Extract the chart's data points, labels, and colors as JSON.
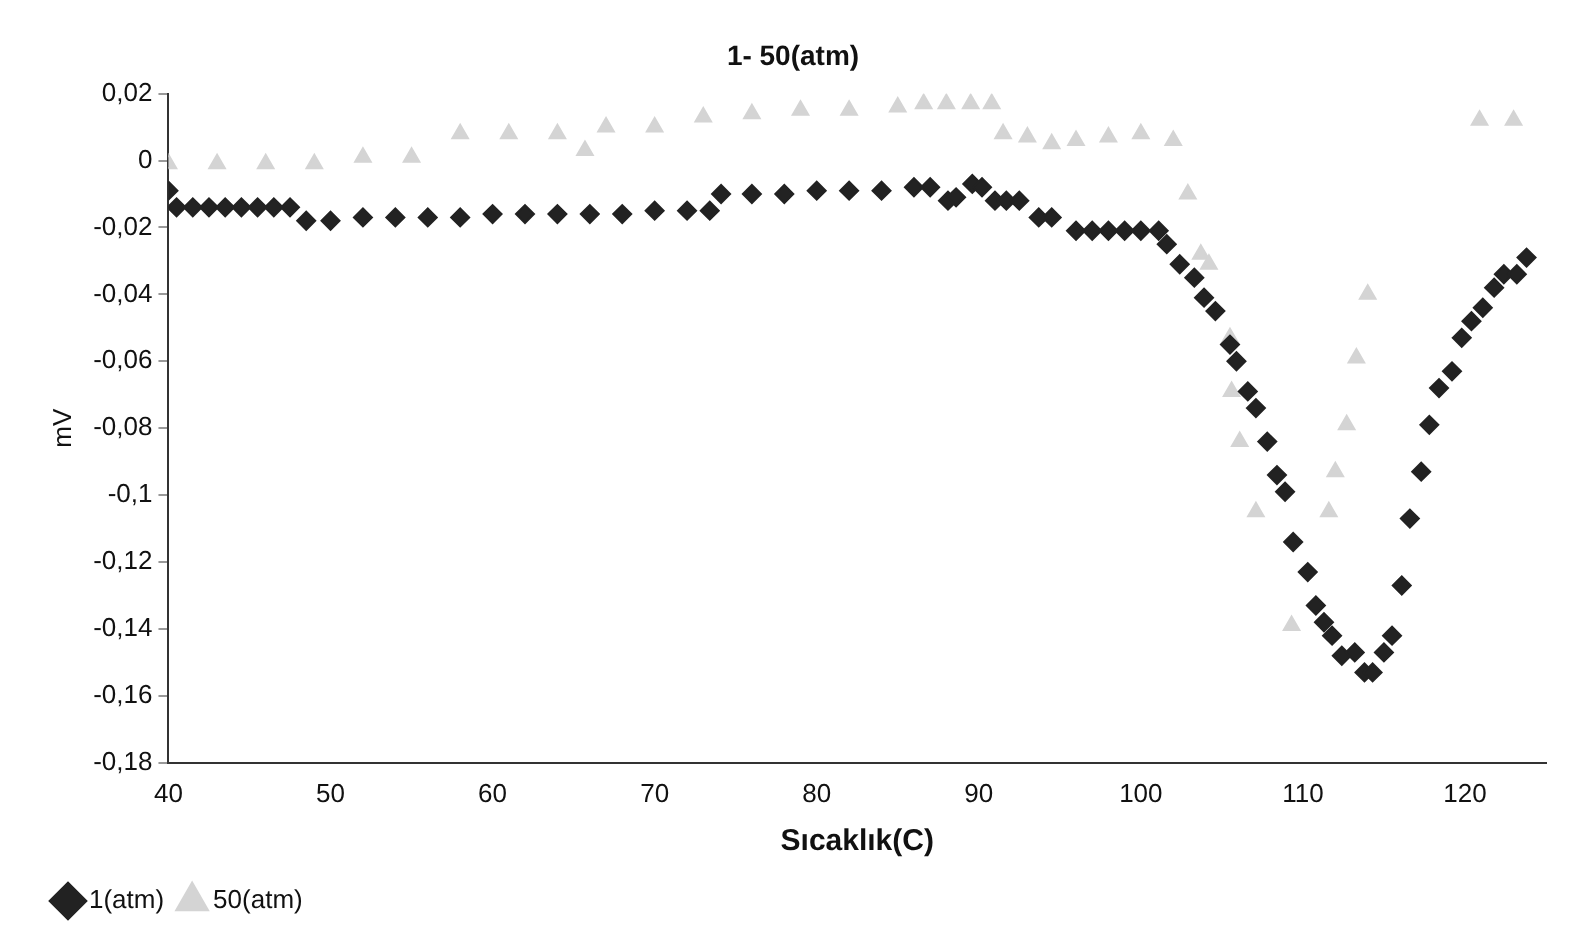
{
  "chart_data": {
    "type": "scatter",
    "title": "1- 50(atm)",
    "xlabel": "Sıcaklık(C)",
    "ylabel": "mV",
    "xlim": [
      40,
      125
    ],
    "xticks": [
      40,
      50,
      60,
      70,
      80,
      90,
      100,
      110,
      120
    ],
    "ylim": [
      -0.18,
      0.02
    ],
    "yticks": [
      {
        "value": 0.02,
        "label": "0,02"
      },
      {
        "value": 0,
        "label": "0"
      },
      {
        "value": -0.02,
        "label": "-0,02"
      },
      {
        "value": -0.04,
        "label": "-0,04"
      },
      {
        "value": -0.06,
        "label": "-0,06"
      },
      {
        "value": -0.08,
        "label": "-0,08"
      },
      {
        "value": -0.1,
        "label": "-0,1"
      },
      {
        "value": -0.12,
        "label": "-0,12"
      },
      {
        "value": -0.14,
        "label": "-0,14"
      },
      {
        "value": -0.16,
        "label": "-0,16"
      },
      {
        "value": -0.18,
        "label": "-0,18"
      }
    ],
    "grid": false,
    "legend": "bottom left",
    "series": [
      {
        "name": "1(atm)",
        "color": "#222222",
        "marker": "diamond",
        "x": [
          40,
          40.5,
          41.5,
          42.5,
          43.5,
          44.5,
          45.5,
          46.5,
          47.5,
          48.5,
          50,
          52,
          54,
          56,
          58,
          60,
          62,
          64,
          66,
          68,
          70,
          72,
          73.4,
          74.1,
          76,
          78,
          80,
          82,
          84,
          86,
          87,
          88.1,
          88.6,
          89.6,
          90.2,
          91,
          91.7,
          92.5,
          93.7,
          94.5,
          96,
          97,
          98,
          99,
          100,
          101.1,
          101.6,
          102.4,
          103.3,
          103.9,
          104.6,
          105.5,
          105.9,
          106.6,
          107.1,
          107.8,
          108.4,
          108.9,
          109.4,
          110.3,
          110.8,
          111.3,
          111.8,
          112.4,
          113.2,
          113.8,
          114.3,
          115,
          115.5,
          116.1,
          116.6,
          117.3,
          117.8,
          118.4,
          119.2,
          119.8,
          120.4,
          121.1,
          121.8,
          122.4,
          123.2,
          123.8
        ],
        "values": [
          -0.009,
          -0.014,
          -0.014,
          -0.014,
          -0.014,
          -0.014,
          -0.014,
          -0.014,
          -0.014,
          -0.018,
          -0.018,
          -0.017,
          -0.017,
          -0.017,
          -0.017,
          -0.016,
          -0.016,
          -0.016,
          -0.016,
          -0.016,
          -0.015,
          -0.015,
          -0.015,
          -0.01,
          -0.01,
          -0.01,
          -0.009,
          -0.009,
          -0.009,
          -0.008,
          -0.008,
          -0.012,
          -0.011,
          -0.007,
          -0.008,
          -0.012,
          -0.012,
          -0.012,
          -0.017,
          -0.017,
          -0.021,
          -0.021,
          -0.021,
          -0.021,
          -0.021,
          -0.021,
          -0.025,
          -0.031,
          -0.035,
          -0.041,
          -0.045,
          -0.055,
          -0.06,
          -0.069,
          -0.074,
          -0.084,
          -0.094,
          -0.099,
          -0.114,
          -0.123,
          -0.133,
          -0.138,
          -0.142,
          -0.148,
          -0.147,
          -0.153,
          -0.153,
          -0.147,
          -0.142,
          -0.127,
          -0.107,
          -0.093,
          -0.079,
          -0.068,
          -0.063,
          -0.053,
          -0.048,
          -0.044,
          -0.038,
          -0.034,
          -0.034,
          -0.029
        ]
      },
      {
        "name": "50(atm)",
        "color": "#d4d4d4",
        "marker": "triangle",
        "x": [
          40,
          43,
          46,
          49,
          52,
          55,
          58,
          61,
          64,
          65.7,
          67,
          70,
          73,
          76,
          79,
          82,
          85,
          86.6,
          88,
          89.5,
          90.8,
          91.5,
          93,
          94.5,
          96,
          98,
          100,
          102,
          102.9,
          103.7,
          104.2,
          105.5,
          105.6,
          106.1,
          107.1,
          109.3,
          111.6,
          112,
          112.7,
          113.3,
          114,
          120.9,
          123
        ],
        "values": [
          -0.001,
          -0.001,
          -0.001,
          -0.001,
          0.001,
          0.001,
          0.008,
          0.008,
          0.008,
          0.003,
          0.01,
          0.01,
          0.013,
          0.014,
          0.015,
          0.015,
          0.016,
          0.017,
          0.017,
          0.017,
          0.017,
          0.008,
          0.007,
          0.005,
          0.006,
          0.007,
          0.008,
          0.006,
          -0.01,
          -0.028,
          -0.031,
          -0.053,
          -0.069,
          -0.084,
          -0.105,
          -0.139,
          -0.105,
          -0.093,
          -0.079,
          -0.059,
          -0.04,
          0.012,
          0.012
        ]
      }
    ]
  }
}
